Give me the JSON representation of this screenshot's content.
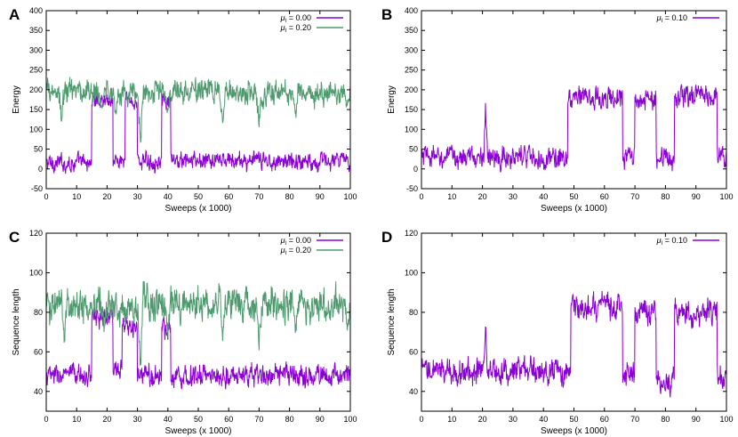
{
  "chart_data": [
    {
      "panel": "A",
      "type": "line",
      "xlabel": "Sweeps (x 1000)",
      "ylabel": "Energy",
      "xlim": [
        0,
        100
      ],
      "ylim": [
        -50,
        400
      ],
      "xticks": [
        0,
        10,
        20,
        30,
        40,
        50,
        60,
        70,
        80,
        90,
        100
      ],
      "yticks": [
        -50,
        0,
        50,
        100,
        150,
        200,
        250,
        300,
        350,
        400
      ],
      "legend_position": "top-right",
      "series": [
        {
          "name": "μI = 0.00",
          "legend_mu": "μ",
          "legend_sub": "I",
          "legend_val": " = 0.00",
          "color": "#8b00d4",
          "segments": [
            [
              0,
              15,
              15
            ],
            [
              15,
              22,
              175
            ],
            [
              22,
              26,
              20
            ],
            [
              26,
              30,
              170
            ],
            [
              30,
              38,
              20
            ],
            [
              38,
              41,
              165
            ],
            [
              41,
              100,
              20
            ]
          ],
          "amplitude": 20
        },
        {
          "name": "μI = 0.20",
          "legend_mu": "μ",
          "legend_sub": "I",
          "legend_val": " = 0.20",
          "color": "#4d9a6e",
          "segments": [
            [
              0,
              100,
              195
            ]
          ],
          "dips": [
            [
              5,
              110
            ],
            [
              18,
              150
            ],
            [
              23,
              130
            ],
            [
              31,
              30
            ],
            [
              40,
              120
            ],
            [
              58,
              100
            ],
            [
              70,
              90
            ],
            [
              82,
              120
            ],
            [
              99,
              150
            ]
          ],
          "amplitude": 28
        }
      ]
    },
    {
      "panel": "B",
      "type": "line",
      "xlabel": "Sweeps (x 1000)",
      "ylabel": "Energy",
      "xlim": [
        0,
        100
      ],
      "ylim": [
        -50,
        400
      ],
      "xticks": [
        0,
        10,
        20,
        30,
        40,
        50,
        60,
        70,
        80,
        90,
        100
      ],
      "yticks": [
        -50,
        0,
        50,
        100,
        150,
        200,
        250,
        300,
        350,
        400
      ],
      "legend_position": "top-right",
      "series": [
        {
          "name": "μI = 0.10",
          "legend_mu": "μ",
          "legend_sub": "I",
          "legend_val": " = 0.10",
          "color": "#8b00d4",
          "segments": [
            [
              0,
              48,
              30
            ],
            [
              48,
              66,
              180
            ],
            [
              66,
              70,
              30
            ],
            [
              70,
              77,
              175
            ],
            [
              77,
              83,
              25
            ],
            [
              83,
              97,
              180
            ],
            [
              97,
              100,
              30
            ]
          ],
          "spikes": [
            [
              21,
              170
            ]
          ],
          "amplitude": 25
        }
      ]
    },
    {
      "panel": "C",
      "type": "line",
      "xlabel": "Sweeps (x 1000)",
      "ylabel": "Sequence length",
      "xlim": [
        0,
        100
      ],
      "ylim": [
        30,
        120
      ],
      "xticks": [
        0,
        10,
        20,
        30,
        40,
        50,
        60,
        70,
        80,
        90,
        100
      ],
      "yticks": [
        40,
        60,
        80,
        100,
        120
      ],
      "legend_position": "top-right",
      "series": [
        {
          "name": "μI = 0.00",
          "legend_mu": "μ",
          "legend_sub": "I",
          "legend_val": " = 0.00",
          "color": "#8b00d4",
          "segments": [
            [
              0,
              15,
              48
            ],
            [
              15,
              22,
              78
            ],
            [
              22,
              25,
              50
            ],
            [
              25,
              30,
              72
            ],
            [
              30,
              38,
              48
            ],
            [
              38,
              41,
              72
            ],
            [
              41,
              100,
              48
            ]
          ],
          "amplitude": 5
        },
        {
          "name": "μI = 0.20",
          "legend_mu": "μ",
          "legend_sub": "I",
          "legend_val": " = 0.20",
          "color": "#4d9a6e",
          "segments": [
            [
              0,
              100,
              84
            ]
          ],
          "dips": [
            [
              6,
              62
            ],
            [
              19,
              70
            ],
            [
              31,
              45
            ],
            [
              40,
              65
            ],
            [
              58,
              62
            ],
            [
              70,
              60
            ],
            [
              82,
              68
            ],
            [
              99,
              70
            ]
          ],
          "amplitude": 8
        }
      ]
    },
    {
      "panel": "D",
      "type": "line",
      "xlabel": "Sweeps (x 1000)",
      "ylabel": "Sequence length",
      "xlim": [
        0,
        100
      ],
      "ylim": [
        30,
        120
      ],
      "xticks": [
        0,
        10,
        20,
        30,
        40,
        50,
        60,
        70,
        80,
        90,
        100
      ],
      "yticks": [
        40,
        60,
        80,
        100,
        120
      ],
      "legend_position": "top-right",
      "series": [
        {
          "name": "μI = 0.10",
          "legend_mu": "μ",
          "legend_sub": "I",
          "legend_val": " = 0.10",
          "color": "#8b00d4",
          "segments": [
            [
              0,
              49,
              50
            ],
            [
              49,
              66,
              82
            ],
            [
              66,
              70,
              50
            ],
            [
              70,
              77,
              80
            ],
            [
              77,
              83,
              45
            ],
            [
              83,
              97,
              80
            ],
            [
              97,
              100,
              48
            ]
          ],
          "spikes": [
            [
              21,
              78
            ]
          ],
          "amplitude": 6
        }
      ]
    }
  ]
}
